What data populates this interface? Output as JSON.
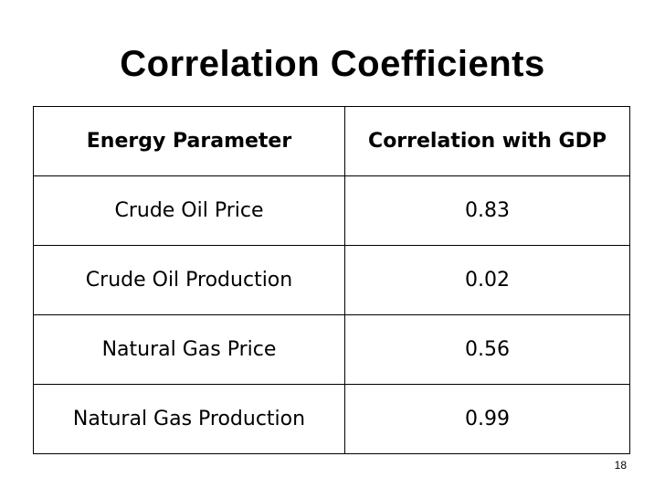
{
  "slide": {
    "title": "Correlation Coefficients",
    "page_number": "18"
  },
  "table": {
    "headers": [
      "Energy Parameter",
      "Correlation with GDP"
    ],
    "rows": [
      [
        "Crude Oil Price",
        "0.83"
      ],
      [
        "Crude Oil Production",
        "0.02"
      ],
      [
        "Natural Gas Price",
        "0.56"
      ],
      [
        "Natural Gas Production",
        "0.99"
      ]
    ]
  }
}
